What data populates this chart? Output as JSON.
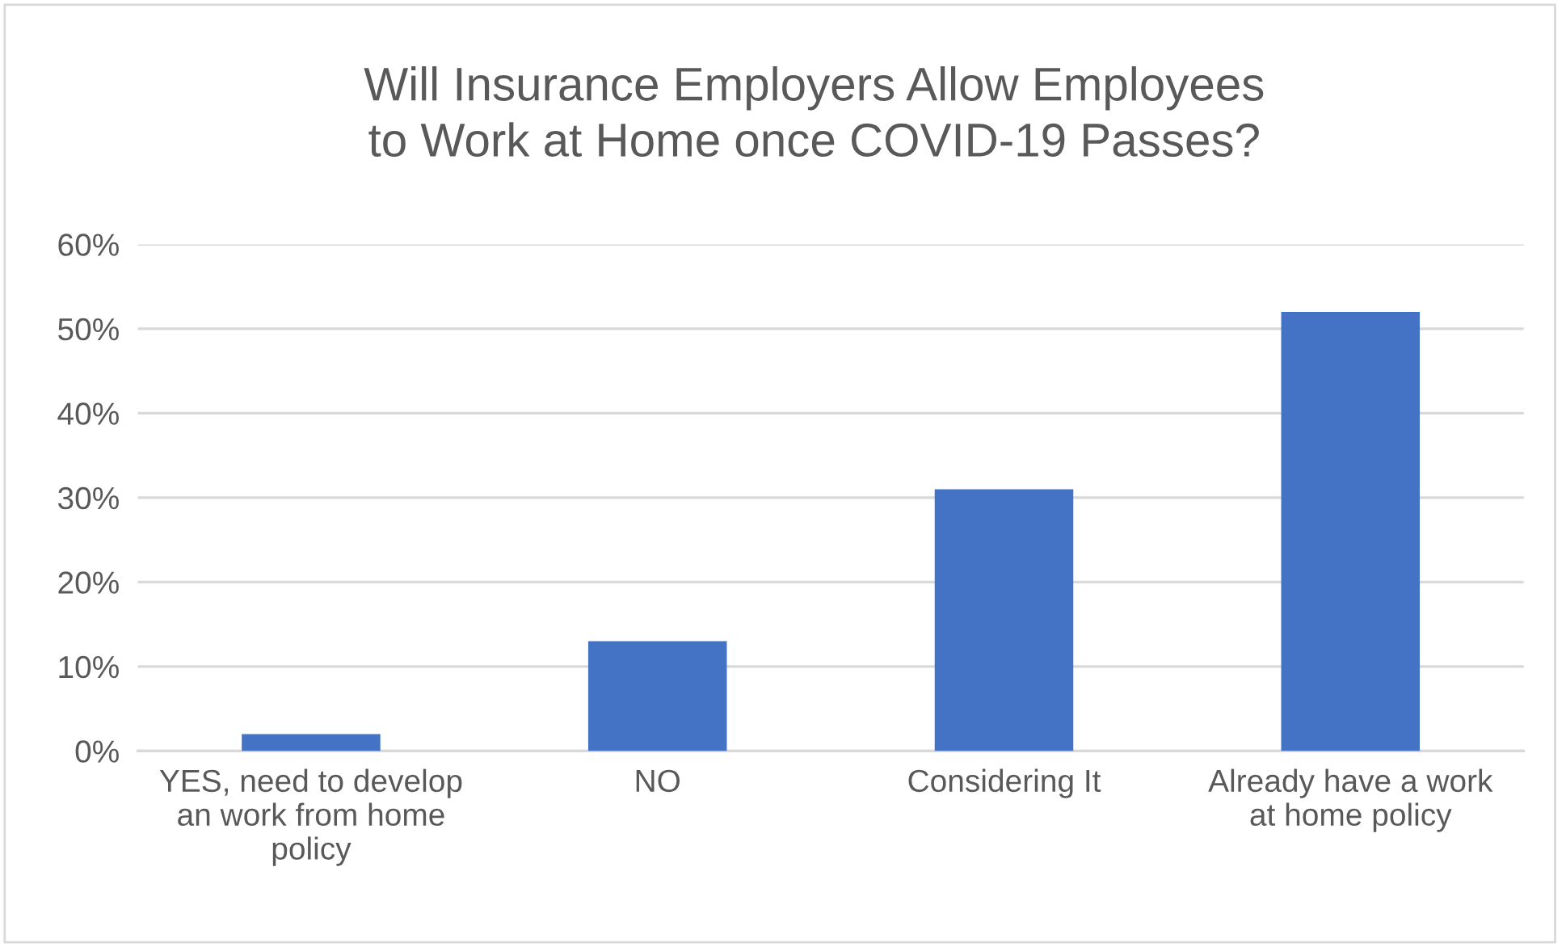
{
  "chart_data": {
    "type": "bar",
    "title": "Will Insurance Employers Allow Employees\nto Work at Home once COVID-19 Passes?",
    "categories": [
      "YES, need to develop\nan work from home\npolicy",
      "NO",
      "Considering It",
      "Already have a work\nat home policy"
    ],
    "values": [
      2,
      13,
      31,
      52
    ],
    "color": "#4472c4",
    "ylim": [
      0,
      60
    ],
    "yticks": [
      {
        "value": 0,
        "label": "0%"
      },
      {
        "value": 10,
        "label": "10%"
      },
      {
        "value": 20,
        "label": "20%"
      },
      {
        "value": 30,
        "label": "30%"
      },
      {
        "value": 40,
        "label": "40%"
      },
      {
        "value": 50,
        "label": "50%"
      },
      {
        "value": 60,
        "label": "60%"
      }
    ],
    "grid": "y",
    "legend": false
  }
}
